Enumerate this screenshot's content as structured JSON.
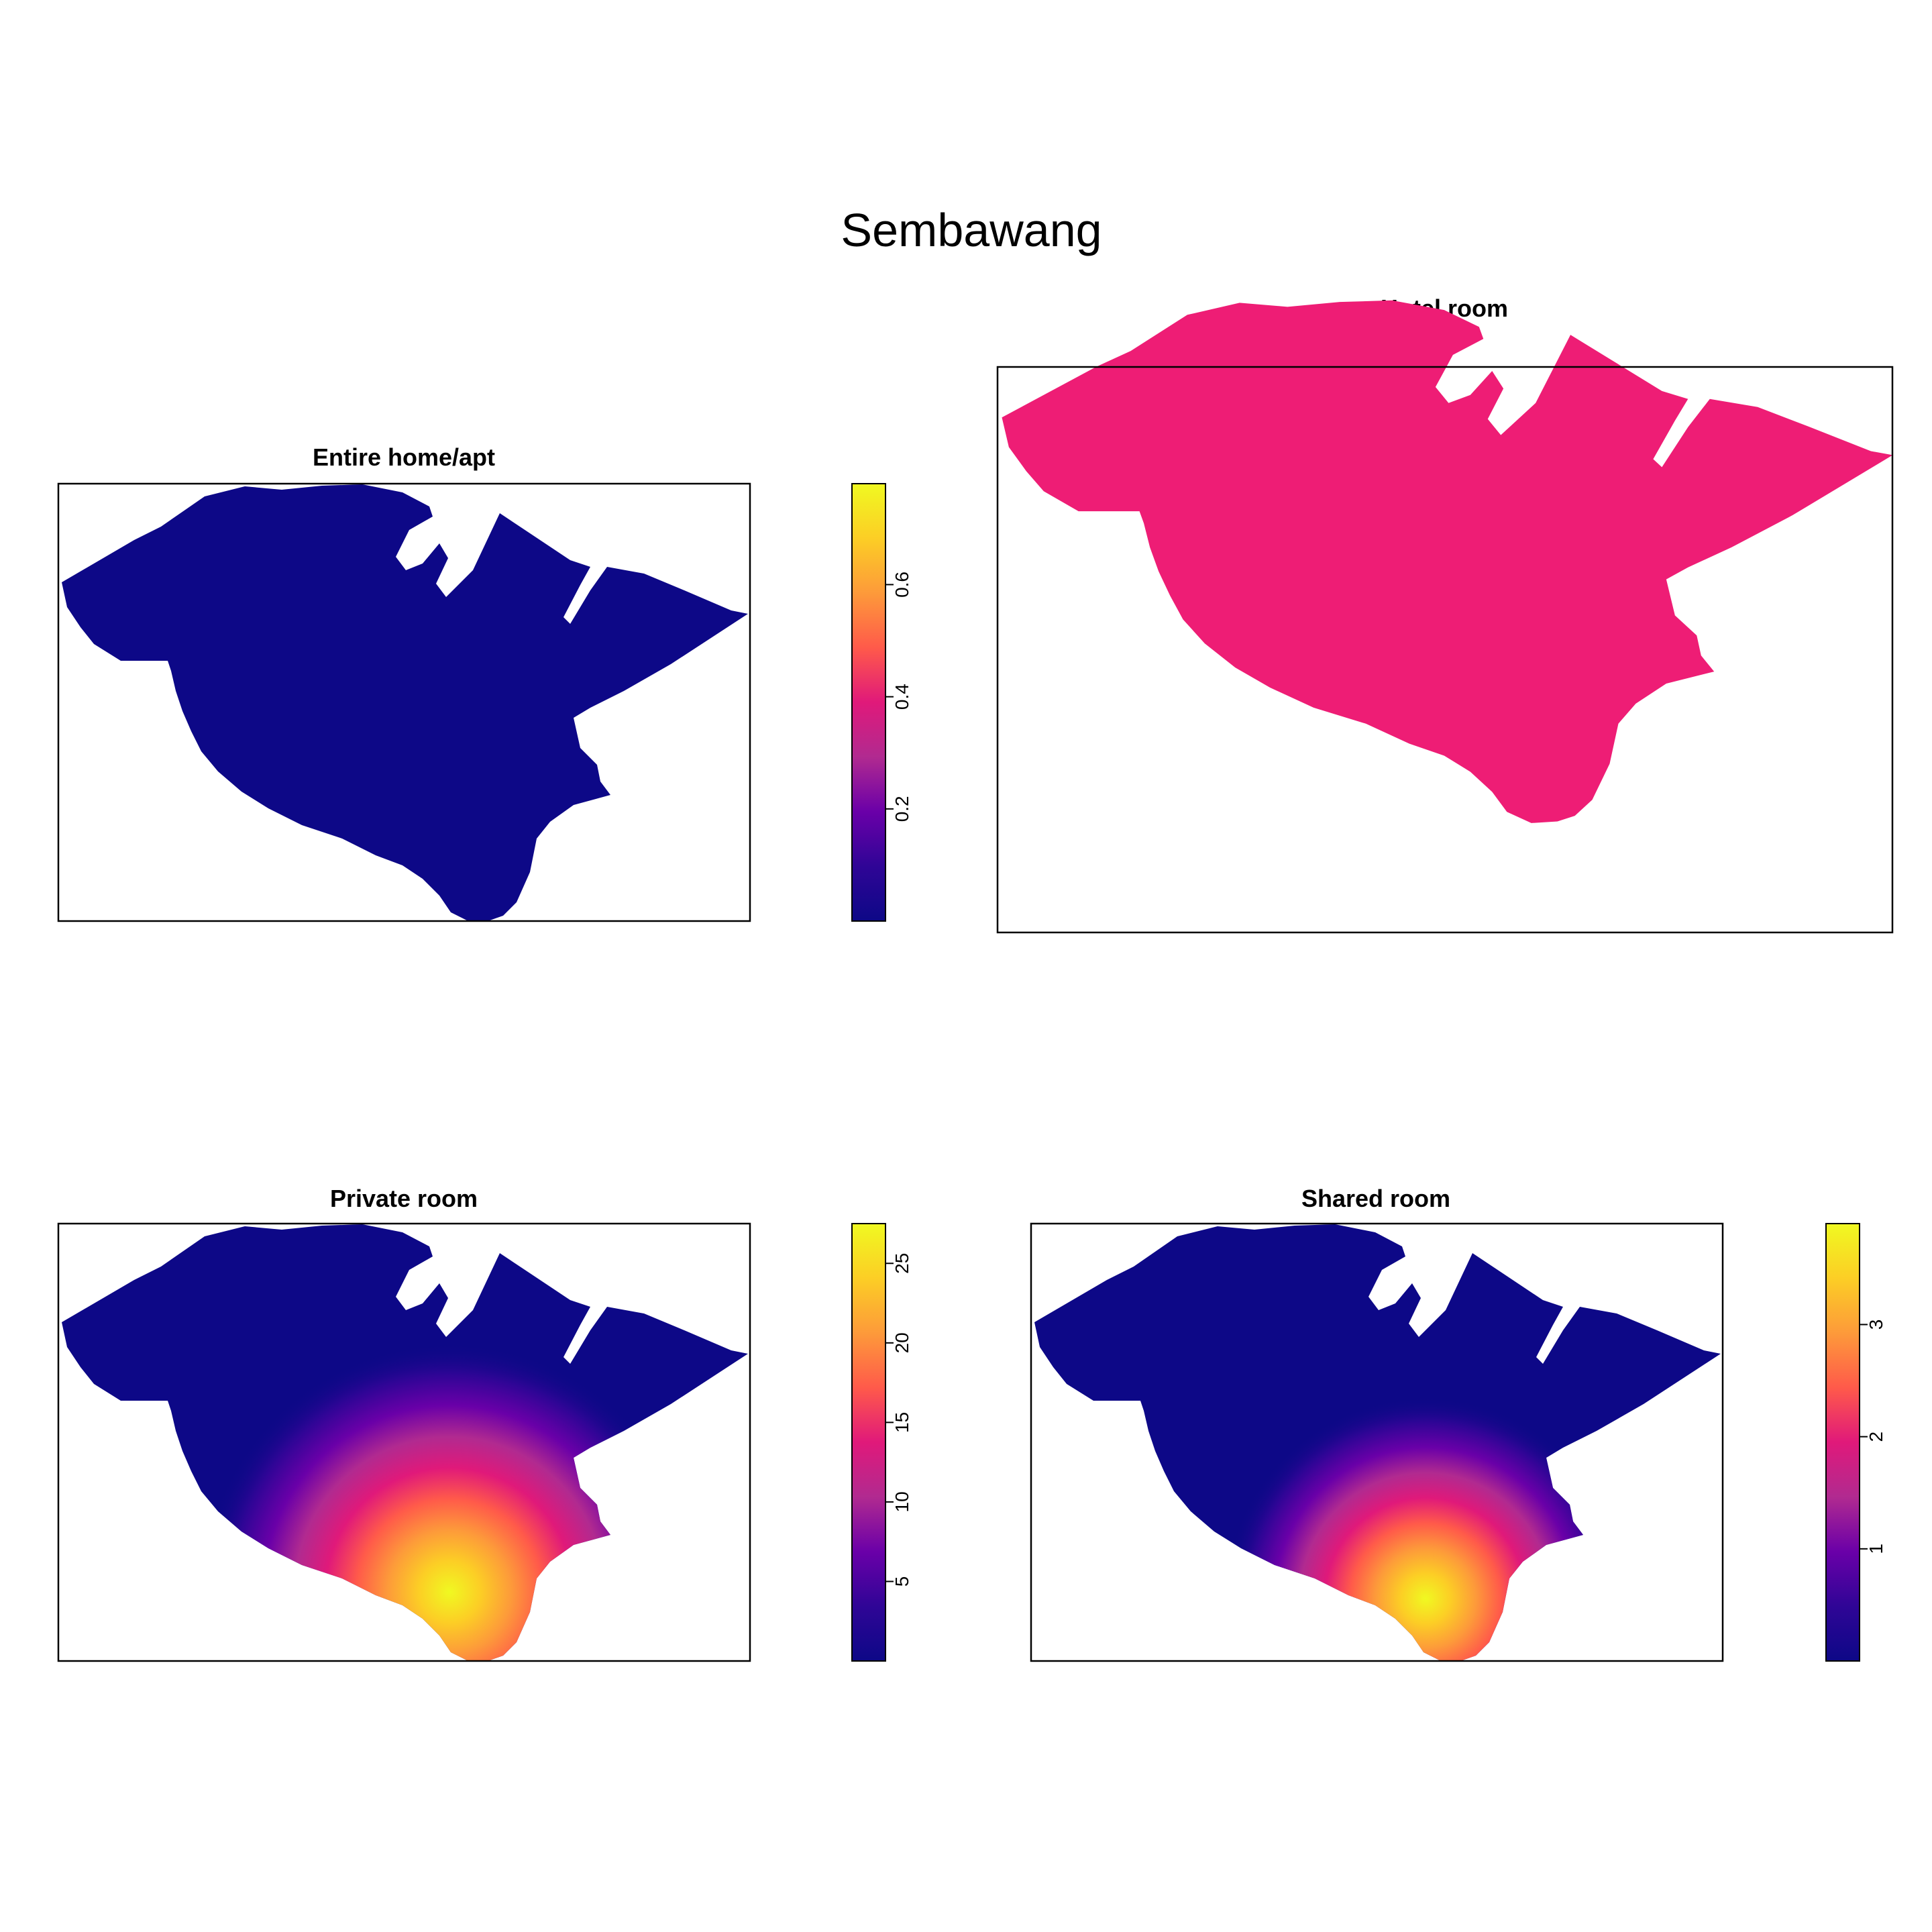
{
  "figure": {
    "title": "Sembawang"
  },
  "colors": {
    "palette": [
      "#0d0887",
      "#2f0596",
      "#6a00a8",
      "#b12a90",
      "#e0197a",
      "#ff5a4a",
      "#fd9a3a",
      "#fcce25",
      "#f0f921"
    ],
    "hotel_fill": "#ee1d75",
    "frame": "#000000",
    "background": "#ffffff"
  },
  "chart_data": [
    {
      "type": "heatmap",
      "title": "Entire home/apt",
      "fill": "kernel-density",
      "hotspot": {
        "location": "southern tip of the region",
        "peak_value": 0.78
      },
      "legend": {
        "position": "right",
        "min": 0,
        "max": 0.78,
        "ticks": [
          0.2,
          0.4,
          0.6
        ],
        "tick_labels": [
          "0.2",
          "0.4",
          "0.6"
        ]
      }
    },
    {
      "type": "heatmap",
      "title": "Hotel room",
      "fill": "uniform",
      "legend": null
    },
    {
      "type": "heatmap",
      "title": "Private room",
      "fill": "kernel-density",
      "hotspot": {
        "location": "southern tip of the region",
        "peak_value": 27.5
      },
      "legend": {
        "position": "right",
        "min": 0,
        "max": 27.5,
        "ticks": [
          5,
          10,
          15,
          20,
          25
        ],
        "tick_labels": [
          "5",
          "10",
          "15",
          "20",
          "25"
        ]
      }
    },
    {
      "type": "heatmap",
      "title": "Shared room",
      "fill": "kernel-density",
      "hotspot": {
        "location": "southern tip of the region",
        "peak_value": 3.9
      },
      "legend": {
        "position": "right",
        "min": 0,
        "max": 3.9,
        "ticks": [
          1,
          2,
          3
        ],
        "tick_labels": [
          "1",
          "2",
          "3"
        ]
      }
    }
  ]
}
